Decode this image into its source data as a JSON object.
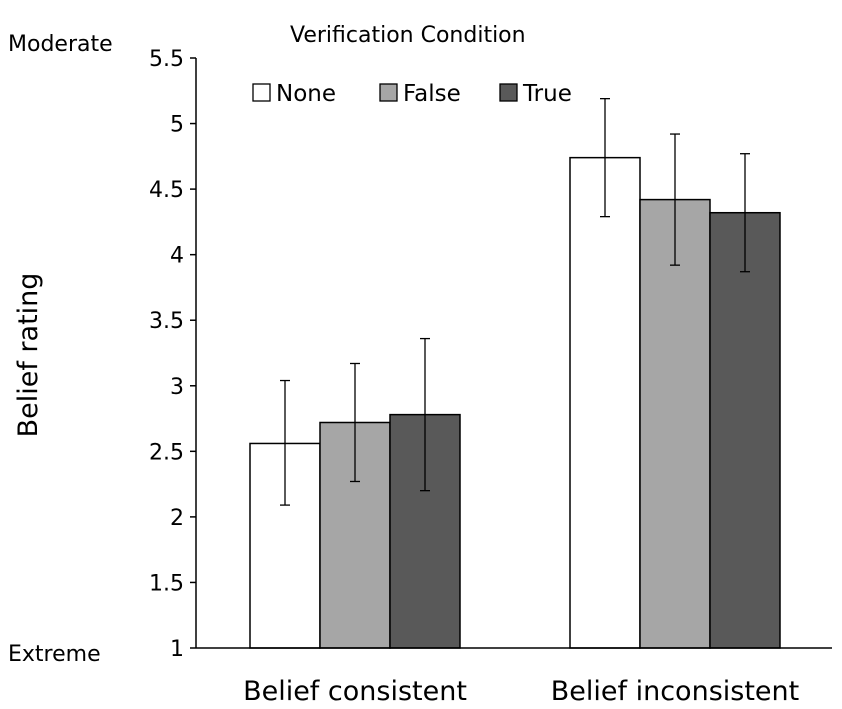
{
  "chart_data": {
    "type": "bar",
    "title": "",
    "xlabel": "",
    "ylabel": "Belief rating",
    "ylim": [
      1,
      5.5
    ],
    "yticks": [
      1,
      1.5,
      2,
      2.5,
      3,
      3.5,
      4,
      4.5,
      5,
      5.5
    ],
    "ytick_labels": [
      "1",
      "1.5",
      "2",
      "2.5",
      "3",
      "3.5",
      "4",
      "4.5",
      "5",
      "5.5"
    ],
    "y_anchor_labels": {
      "top": "Moderate",
      "bottom": "Extreme"
    },
    "grid": false,
    "legend": {
      "title": "Verification Condition",
      "placement": "top-left"
    },
    "categories": [
      "Belief consistent",
      "Belief inconsistent"
    ],
    "series": [
      {
        "name": "None",
        "color": "#ffffff",
        "values": [
          2.56,
          4.74
        ],
        "error_low": [
          2.09,
          4.29
        ],
        "error_high": [
          3.04,
          5.19
        ]
      },
      {
        "name": "False",
        "color": "#a6a6a6",
        "values": [
          2.72,
          4.42
        ],
        "error_low": [
          2.27,
          3.92
        ],
        "error_high": [
          3.17,
          4.92
        ]
      },
      {
        "name": "True",
        "color": "#595959",
        "values": [
          2.78,
          4.32
        ],
        "error_low": [
          2.2,
          3.87
        ],
        "error_high": [
          3.36,
          4.77
        ]
      }
    ]
  }
}
